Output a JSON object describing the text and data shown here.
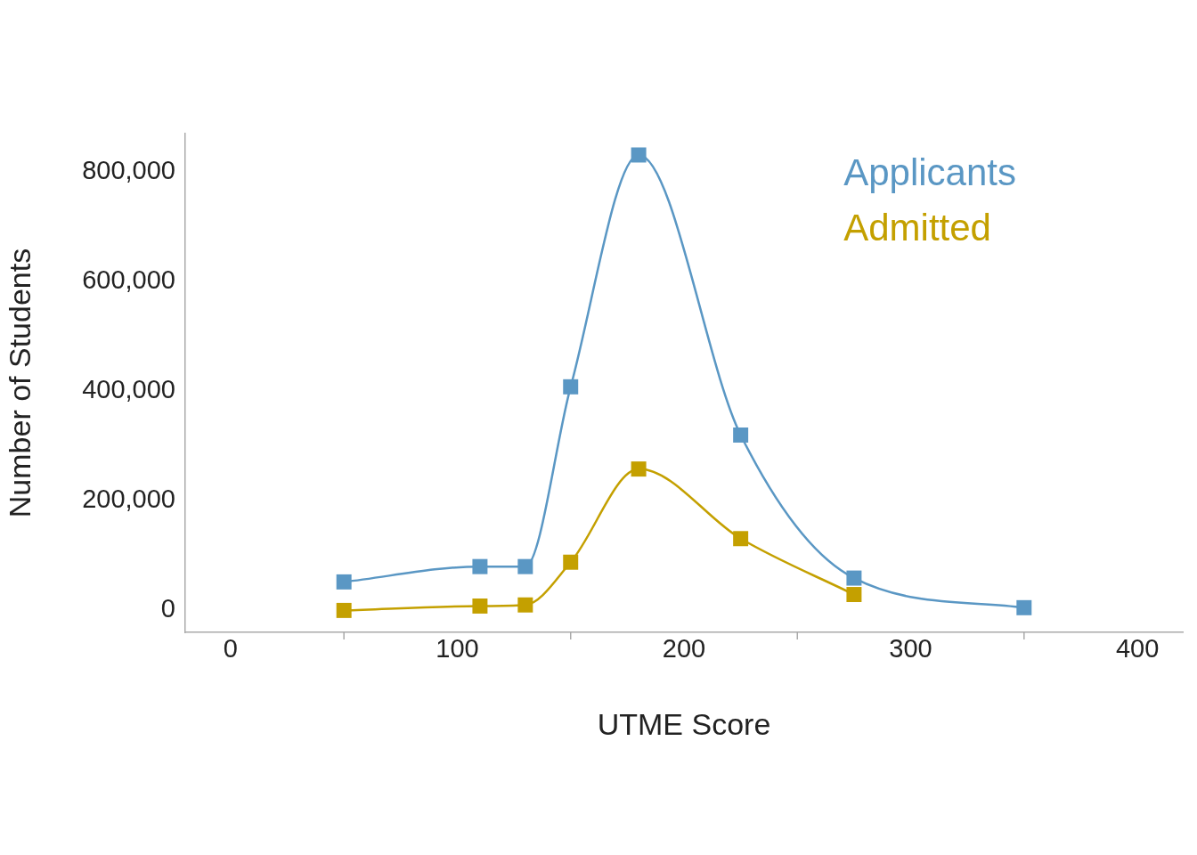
{
  "chart_data": {
    "type": "line",
    "xlabel": "UTME Score",
    "ylabel": "Number of Students",
    "xlim": [
      -20,
      420
    ],
    "xticks": [
      0,
      {
        "value": 50,
        "label": null
      },
      100,
      {
        "value": 150,
        "label": null
      },
      200,
      {
        "value": 250,
        "label": null
      },
      300,
      {
        "value": 350,
        "label": null
      },
      400
    ],
    "ylim": [
      -40000,
      870000
    ],
    "yticks": [
      {
        "value": 0,
        "label": "0"
      },
      {
        "value": 200000,
        "label": "200,000"
      },
      {
        "value": 400000,
        "label": "400,000"
      },
      {
        "value": 600000,
        "label": "600,000"
      },
      {
        "value": 800000,
        "label": "800,000"
      }
    ],
    "x": [
      50,
      110,
      130,
      150,
      180,
      225,
      275,
      350
    ],
    "series": [
      {
        "name": "Applicants",
        "color": "#5a97c4",
        "values": [
          52000,
          80000,
          80000,
          408000,
          831000,
          320000,
          59000,
          5000
        ]
      },
      {
        "name": "Admitted",
        "color": "#c4a000",
        "values": [
          0,
          8000,
          10000,
          88000,
          258000,
          131000,
          29000,
          null
        ]
      }
    ],
    "marker": "square",
    "line_style": "solid",
    "grid": false,
    "legend": "top right"
  }
}
